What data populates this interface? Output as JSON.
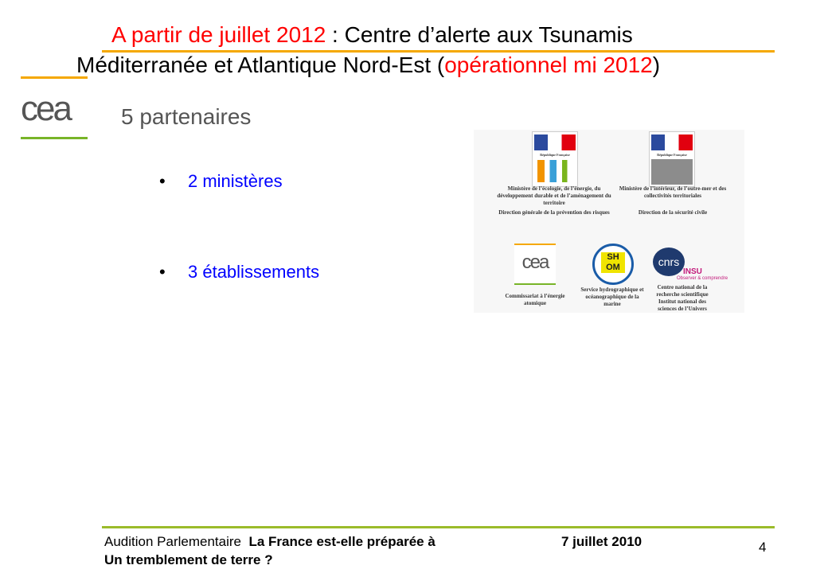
{
  "title": {
    "line1_red": "A partir de juillet 2012",
    "line1_black": " : Centre d’alerte aux Tsunamis",
    "line2_black": "Méditerranée et Atlantique Nord-Est (",
    "line2_red": "opérationnel mi 2012",
    "line2_end": ")"
  },
  "logo": {
    "text": "cea"
  },
  "subtitle": "5 partenaires",
  "bullets": [
    {
      "marker": "•",
      "text": "2 ministères"
    },
    {
      "marker": "•",
      "text": "3 établissements"
    }
  ],
  "partners": {
    "ministry1": {
      "caption": "Ministère de l’écologie, de l’énergie, du développement durable et de l’aménagement du territoire",
      "sub": "Direction générale de la prévention des risques",
      "rf": "République Française"
    },
    "ministry2": {
      "caption": "Ministère de l’intérieur, de l’outre-mer et des collectivités territoriales",
      "sub": "Direction de la sécurité civile",
      "rf": "République Française"
    },
    "cea": {
      "logo": "cea",
      "caption": "Commissariat à l’énergie atomique"
    },
    "shom": {
      "logo": "SH OM",
      "caption": "Service hydrographique et océanographique de la marine"
    },
    "cnrs": {
      "logo": "cnrs",
      "insu": "INSU",
      "tagline": "Observer & comprendre",
      "caption": "Centre national de la recherche scientifique Institut national des sciences de l’Univers"
    }
  },
  "footer": {
    "left": "Audition Parlementaire",
    "title": "La France est-elle préparée à",
    "title2": "Un tremblement de terre ?",
    "date": "7 juillet 2010",
    "page": "4"
  },
  "colors": {
    "red": "#ff0000",
    "blue": "#0000ff",
    "orange": "#f5a800",
    "green": "#9bbb2a"
  }
}
